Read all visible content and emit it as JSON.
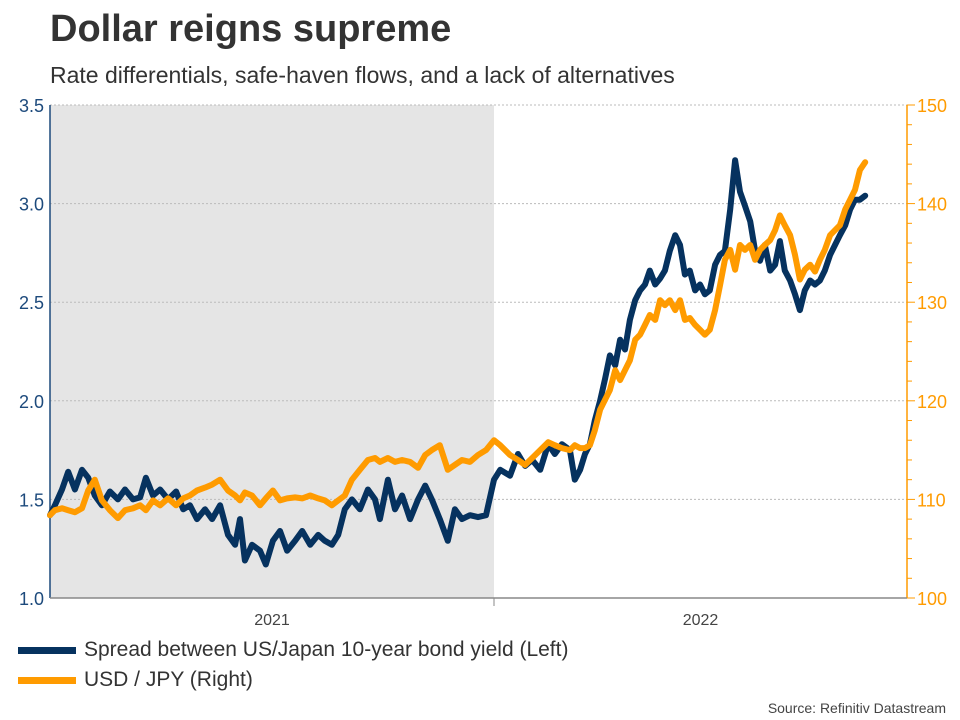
{
  "chart_data": {
    "type": "line",
    "title": "Dollar reigns supreme",
    "subtitle": "Rate differentials, safe-haven flows, and a lack of alternatives",
    "source": "Source: Refinitiv Datastream",
    "x_tick_labels": [
      "2021",
      "2022"
    ],
    "shaded_period": "2021",
    "grid": true,
    "legend_placement": "bottom-left",
    "left_axis": {
      "ylim": [
        1.0,
        3.5
      ],
      "ticks": [
        "1.0",
        "1.5",
        "2.0",
        "2.5",
        "3.0",
        "3.5"
      ],
      "color": "#1d4a7c"
    },
    "right_axis": {
      "ylim": [
        100,
        150
      ],
      "ticks": [
        "100",
        "110",
        "120",
        "130",
        "140",
        "150"
      ],
      "color": "#ff9b00"
    },
    "x": [
      2021.0,
      2021.011,
      2021.027,
      2021.041,
      2021.056,
      2021.072,
      2021.086,
      2021.101,
      2021.117,
      2021.135,
      2021.153,
      2021.169,
      2021.187,
      2021.203,
      2021.216,
      2021.232,
      2021.248,
      2021.266,
      2021.284,
      2021.3,
      2021.315,
      2021.331,
      2021.349,
      2021.365,
      2021.383,
      2021.401,
      2021.417,
      2021.428,
      2021.439,
      2021.455,
      2021.473,
      2021.486,
      2021.502,
      2021.518,
      2021.534,
      2021.552,
      2021.568,
      2021.586,
      2021.604,
      2021.619,
      2021.635,
      2021.649,
      2021.664,
      2021.68,
      2021.698,
      2021.716,
      2021.732,
      2021.743,
      2021.761,
      2021.777,
      2021.793,
      2021.811,
      2021.829,
      2021.845,
      2021.86,
      2021.878,
      2021.896,
      2021.912,
      2021.928,
      2021.946,
      2021.964,
      2021.982,
      2022.0,
      2022.014,
      2022.036,
      2022.054,
      2022.07,
      2022.086,
      2022.104,
      2022.122,
      2022.137,
      2022.153,
      2022.171,
      2022.182,
      2022.194,
      2022.205,
      2022.216,
      2022.227,
      2022.239,
      2022.25,
      2022.261,
      2022.273,
      2022.284,
      2022.295,
      2022.306,
      2022.318,
      2022.329,
      2022.34,
      2022.351,
      2022.363,
      2022.374,
      2022.385,
      2022.396,
      2022.408,
      2022.419,
      2022.43,
      2022.441,
      2022.453,
      2022.464,
      2022.475,
      2022.486,
      2022.498,
      2022.509,
      2022.52,
      2022.532,
      2022.543,
      2022.554,
      2022.565,
      2022.577,
      2022.588,
      2022.599,
      2022.61,
      2022.622,
      2022.633,
      2022.644,
      2022.655,
      2022.667,
      2022.678,
      2022.689,
      2022.7,
      2022.712,
      2022.723,
      2022.734,
      2022.745,
      2022.757,
      2022.768,
      2022.779,
      2022.791,
      2022.802,
      2022.813,
      2022.824,
      2022.836
    ],
    "series": [
      {
        "name": "Spread between US/Japan 10-year bond yield (Left)",
        "axis": "left",
        "color": "#06325f",
        "values": [
          1.42,
          1.47,
          1.55,
          1.64,
          1.55,
          1.65,
          1.61,
          1.52,
          1.47,
          1.54,
          1.5,
          1.55,
          1.5,
          1.51,
          1.61,
          1.52,
          1.55,
          1.5,
          1.54,
          1.45,
          1.47,
          1.4,
          1.45,
          1.4,
          1.47,
          1.32,
          1.27,
          1.4,
          1.19,
          1.27,
          1.24,
          1.17,
          1.29,
          1.34,
          1.24,
          1.29,
          1.34,
          1.27,
          1.32,
          1.29,
          1.27,
          1.32,
          1.45,
          1.5,
          1.45,
          1.55,
          1.5,
          1.4,
          1.6,
          1.45,
          1.52,
          1.4,
          1.5,
          1.57,
          1.5,
          1.4,
          1.29,
          1.45,
          1.4,
          1.42,
          1.41,
          1.42,
          1.6,
          1.65,
          1.62,
          1.73,
          1.67,
          1.7,
          1.65,
          1.78,
          1.73,
          1.78,
          1.75,
          1.6,
          1.65,
          1.73,
          1.78,
          1.9,
          2.0,
          2.11,
          2.23,
          2.18,
          2.31,
          2.26,
          2.41,
          2.51,
          2.56,
          2.59,
          2.66,
          2.59,
          2.62,
          2.66,
          2.76,
          2.84,
          2.79,
          2.64,
          2.66,
          2.56,
          2.59,
          2.54,
          2.56,
          2.69,
          2.74,
          2.76,
          2.97,
          3.22,
          3.06,
          2.99,
          2.91,
          2.76,
          2.71,
          2.79,
          2.66,
          2.69,
          2.81,
          2.66,
          2.61,
          2.54,
          2.46,
          2.56,
          2.61,
          2.59,
          2.61,
          2.66,
          2.74,
          2.79,
          2.84,
          2.89,
          2.97,
          3.02,
          3.02,
          3.04
        ]
      },
      {
        "name": "USD / JPY (Right)",
        "axis": "right",
        "color": "#ff9b00",
        "values": [
          108.4,
          108.9,
          109.1,
          108.9,
          108.7,
          109.1,
          110.9,
          112.0,
          109.9,
          108.9,
          108.1,
          108.9,
          109.1,
          109.4,
          108.9,
          109.9,
          109.4,
          110.1,
          109.4,
          110.1,
          110.4,
          110.9,
          111.2,
          111.5,
          112.0,
          110.9,
          110.4,
          109.9,
          110.7,
          110.4,
          109.4,
          110.1,
          110.9,
          109.9,
          110.1,
          110.2,
          110.1,
          110.4,
          110.1,
          109.9,
          109.4,
          109.9,
          110.4,
          112.0,
          113.0,
          114.0,
          114.2,
          113.8,
          114.2,
          113.8,
          114.0,
          113.8,
          113.2,
          114.5,
          115.0,
          115.5,
          113.0,
          113.5,
          114.0,
          113.8,
          114.5,
          115.0,
          116.0,
          115.5,
          114.5,
          114.0,
          113.5,
          114.2,
          115.0,
          115.8,
          115.5,
          115.2,
          115.0,
          115.5,
          115.2,
          115.2,
          115.5,
          117.0,
          119.1,
          120.1,
          121.1,
          123.1,
          122.1,
          123.1,
          124.1,
          126.2,
          126.7,
          127.7,
          128.7,
          128.2,
          130.2,
          129.7,
          130.2,
          129.2,
          130.2,
          128.2,
          128.4,
          127.7,
          127.2,
          126.7,
          127.2,
          129.2,
          131.7,
          134.3,
          135.3,
          133.3,
          135.8,
          135.3,
          135.8,
          134.3,
          135.3,
          135.8,
          136.3,
          137.3,
          138.8,
          137.8,
          136.8,
          134.8,
          132.3,
          133.3,
          133.8,
          133.1,
          134.3,
          135.3,
          136.8,
          137.3,
          137.8,
          139.4,
          140.4,
          141.4,
          143.4,
          144.2
        ]
      }
    ]
  }
}
